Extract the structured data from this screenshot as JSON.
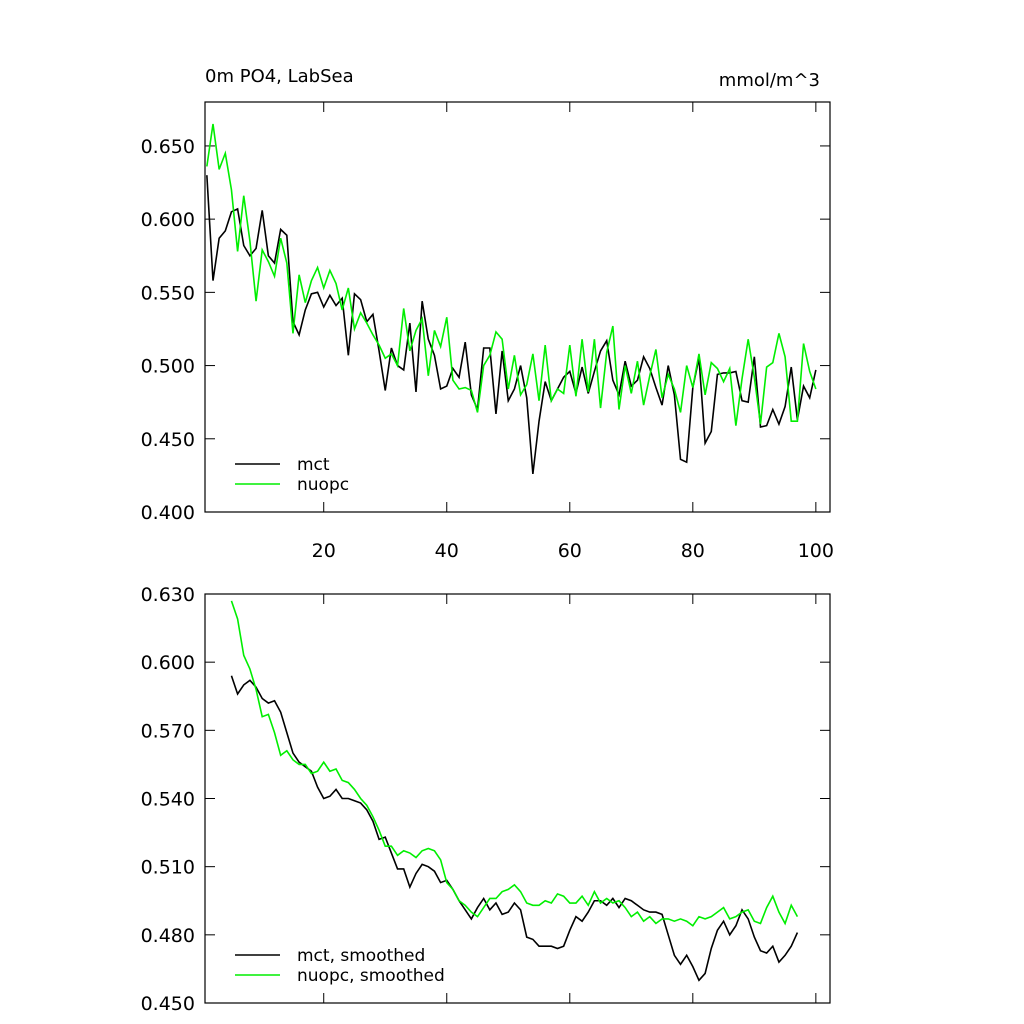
{
  "chart_data": [
    {
      "type": "line",
      "title": "0m PO4, LabSea",
      "units": "mmol/m^3",
      "x": [
        1,
        2,
        3,
        4,
        5,
        6,
        7,
        8,
        9,
        10,
        11,
        12,
        13,
        14,
        15,
        16,
        17,
        18,
        19,
        20,
        21,
        22,
        23,
        24,
        25,
        26,
        27,
        28,
        29,
        30,
        31,
        32,
        33,
        34,
        35,
        36,
        37,
        38,
        39,
        40,
        41,
        42,
        43,
        44,
        45,
        46,
        47,
        48,
        49,
        50,
        51,
        52,
        53,
        54,
        55,
        56,
        57,
        58,
        59,
        60,
        61,
        62,
        63,
        64,
        65,
        66,
        67,
        68,
        69,
        70,
        71,
        72,
        73,
        74,
        75,
        76,
        77,
        78,
        79,
        80,
        81,
        82,
        83,
        84,
        85,
        86,
        87,
        88,
        89,
        90,
        91,
        92,
        93,
        94,
        95,
        96,
        97,
        98,
        99,
        100
      ],
      "series": [
        {
          "name": "mct",
          "color": "#000000",
          "values": [
            0.63,
            0.558,
            0.587,
            0.592,
            0.605,
            0.607,
            0.582,
            0.575,
            0.58,
            0.606,
            0.575,
            0.57,
            0.593,
            0.589,
            0.53,
            0.521,
            0.538,
            0.549,
            0.55,
            0.54,
            0.548,
            0.541,
            0.546,
            0.507,
            0.549,
            0.545,
            0.53,
            0.535,
            0.51,
            0.483,
            0.512,
            0.5,
            0.497,
            0.529,
            0.482,
            0.544,
            0.518,
            0.507,
            0.484,
            0.486,
            0.498,
            0.492,
            0.516,
            0.48,
            0.47,
            0.512,
            0.512,
            0.467,
            0.51,
            0.476,
            0.484,
            0.5,
            0.478,
            0.426,
            0.462,
            0.489,
            0.476,
            0.484,
            0.492,
            0.496,
            0.481,
            0.499,
            0.481,
            0.496,
            0.51,
            0.517,
            0.49,
            0.48,
            0.503,
            0.486,
            0.49,
            0.506,
            0.498,
            0.485,
            0.473,
            0.5,
            0.48,
            0.436,
            0.434,
            0.485,
            0.505,
            0.447,
            0.455,
            0.494,
            0.495,
            0.495,
            0.496,
            0.476,
            0.475,
            0.506,
            0.458,
            0.459,
            0.47,
            0.46,
            0.472,
            0.499,
            0.463,
            0.486,
            0.478,
            0.497
          ]
        },
        {
          "name": "nuopc",
          "color": "#00ee00",
          "values": [
            0.636,
            0.665,
            0.634,
            0.645,
            0.62,
            0.578,
            0.616,
            0.585,
            0.544,
            0.579,
            0.571,
            0.561,
            0.587,
            0.57,
            0.522,
            0.562,
            0.543,
            0.558,
            0.567,
            0.553,
            0.565,
            0.556,
            0.538,
            0.553,
            0.525,
            0.536,
            0.529,
            0.521,
            0.514,
            0.505,
            0.508,
            0.5,
            0.539,
            0.51,
            0.524,
            0.532,
            0.493,
            0.524,
            0.513,
            0.533,
            0.49,
            0.484,
            0.485,
            0.483,
            0.468,
            0.5,
            0.507,
            0.523,
            0.518,
            0.484,
            0.507,
            0.48,
            0.487,
            0.508,
            0.476,
            0.514,
            0.476,
            0.484,
            0.481,
            0.514,
            0.479,
            0.518,
            0.482,
            0.518,
            0.471,
            0.509,
            0.527,
            0.47,
            0.5,
            0.481,
            0.503,
            0.473,
            0.493,
            0.511,
            0.478,
            0.494,
            0.484,
            0.468,
            0.5,
            0.485,
            0.508,
            0.48,
            0.502,
            0.498,
            0.489,
            0.498,
            0.459,
            0.491,
            0.518,
            0.492,
            0.46,
            0.499,
            0.502,
            0.522,
            0.506,
            0.462,
            0.462,
            0.515,
            0.496,
            0.484
          ]
        }
      ],
      "xlim": [
        0.7,
        102.3
      ],
      "xticks": [
        20,
        40,
        60,
        80,
        100
      ],
      "ylim": [
        0.4,
        0.68
      ],
      "yticks": [
        {
          "value": 0.4,
          "label": "0.400"
        },
        {
          "value": 0.45,
          "label": "0.450"
        },
        {
          "value": 0.5,
          "label": "0.500"
        },
        {
          "value": 0.55,
          "label": "0.550"
        },
        {
          "value": 0.6,
          "label": "0.600"
        },
        {
          "value": 0.65,
          "label": "0.650"
        }
      ],
      "legend": "lower left"
    },
    {
      "type": "line",
      "x": [
        5,
        6,
        7,
        8,
        9,
        10,
        11,
        12,
        13,
        14,
        15,
        16,
        17,
        18,
        19,
        20,
        21,
        22,
        23,
        24,
        25,
        26,
        27,
        28,
        29,
        30,
        31,
        32,
        33,
        34,
        35,
        36,
        37,
        38,
        39,
        40,
        41,
        42,
        43,
        44,
        45,
        46,
        47,
        48,
        49,
        50,
        51,
        52,
        53,
        54,
        55,
        56,
        57,
        58,
        59,
        60,
        61,
        62,
        63,
        64,
        65,
        66,
        67,
        68,
        69,
        70,
        71,
        72,
        73,
        74,
        75,
        76,
        77,
        78,
        79,
        80,
        81,
        82,
        83,
        84,
        85,
        86,
        87,
        88,
        89,
        90,
        91,
        92,
        93,
        94,
        95,
        96,
        97
      ],
      "series": [
        {
          "name": "mct, smoothed",
          "color": "#000000",
          "values": [
            0.594,
            0.586,
            0.59,
            0.592,
            0.589,
            0.584,
            0.582,
            0.583,
            0.578,
            0.569,
            0.56,
            0.556,
            0.554,
            0.552,
            0.545,
            0.54,
            0.541,
            0.544,
            0.54,
            0.54,
            0.539,
            0.538,
            0.535,
            0.53,
            0.522,
            0.523,
            0.516,
            0.509,
            0.509,
            0.501,
            0.507,
            0.511,
            0.51,
            0.508,
            0.503,
            0.504,
            0.5,
            0.495,
            0.491,
            0.487,
            0.492,
            0.496,
            0.491,
            0.494,
            0.489,
            0.49,
            0.494,
            0.491,
            0.479,
            0.478,
            0.475,
            0.475,
            0.475,
            0.474,
            0.475,
            0.482,
            0.488,
            0.486,
            0.49,
            0.495,
            0.495,
            0.493,
            0.496,
            0.492,
            0.496,
            0.495,
            0.493,
            0.491,
            0.49,
            0.49,
            0.489,
            0.48,
            0.471,
            0.467,
            0.471,
            0.466,
            0.46,
            0.463,
            0.474,
            0.482,
            0.486,
            0.48,
            0.484,
            0.491,
            0.487,
            0.479,
            0.473,
            0.472,
            0.475,
            0.468,
            0.471,
            0.475,
            0.481
          ]
        },
        {
          "name": "nuopc, smoothed",
          "color": "#00ee00",
          "values": [
            0.627,
            0.619,
            0.603,
            0.597,
            0.588,
            0.576,
            0.577,
            0.569,
            0.559,
            0.561,
            0.557,
            0.555,
            0.555,
            0.551,
            0.552,
            0.556,
            0.552,
            0.553,
            0.548,
            0.547,
            0.544,
            0.54,
            0.537,
            0.532,
            0.526,
            0.519,
            0.519,
            0.515,
            0.517,
            0.516,
            0.514,
            0.517,
            0.518,
            0.517,
            0.513,
            0.503,
            0.5,
            0.495,
            0.493,
            0.49,
            0.488,
            0.492,
            0.496,
            0.496,
            0.499,
            0.5,
            0.502,
            0.499,
            0.494,
            0.493,
            0.493,
            0.495,
            0.494,
            0.498,
            0.497,
            0.494,
            0.494,
            0.497,
            0.493,
            0.499,
            0.494,
            0.496,
            0.494,
            0.495,
            0.492,
            0.488,
            0.49,
            0.486,
            0.488,
            0.485,
            0.487,
            0.487,
            0.486,
            0.487,
            0.486,
            0.484,
            0.488,
            0.487,
            0.488,
            0.49,
            0.492,
            0.487,
            0.488,
            0.49,
            0.491,
            0.486,
            0.485,
            0.492,
            0.497,
            0.49,
            0.485,
            0.493,
            0.488
          ]
        }
      ],
      "xlim": [
        0.7,
        102.3
      ],
      "xticks": [
        20,
        40,
        60,
        80,
        100
      ],
      "ylim": [
        0.45,
        0.63
      ],
      "yticks": [
        {
          "value": 0.45,
          "label": "0.450"
        },
        {
          "value": 0.48,
          "label": "0.480"
        },
        {
          "value": 0.51,
          "label": "0.510"
        },
        {
          "value": 0.54,
          "label": "0.540"
        },
        {
          "value": 0.57,
          "label": "0.570"
        },
        {
          "value": 0.6,
          "label": "0.600"
        },
        {
          "value": 0.63,
          "label": "0.630"
        }
      ],
      "legend": "lower left"
    }
  ]
}
